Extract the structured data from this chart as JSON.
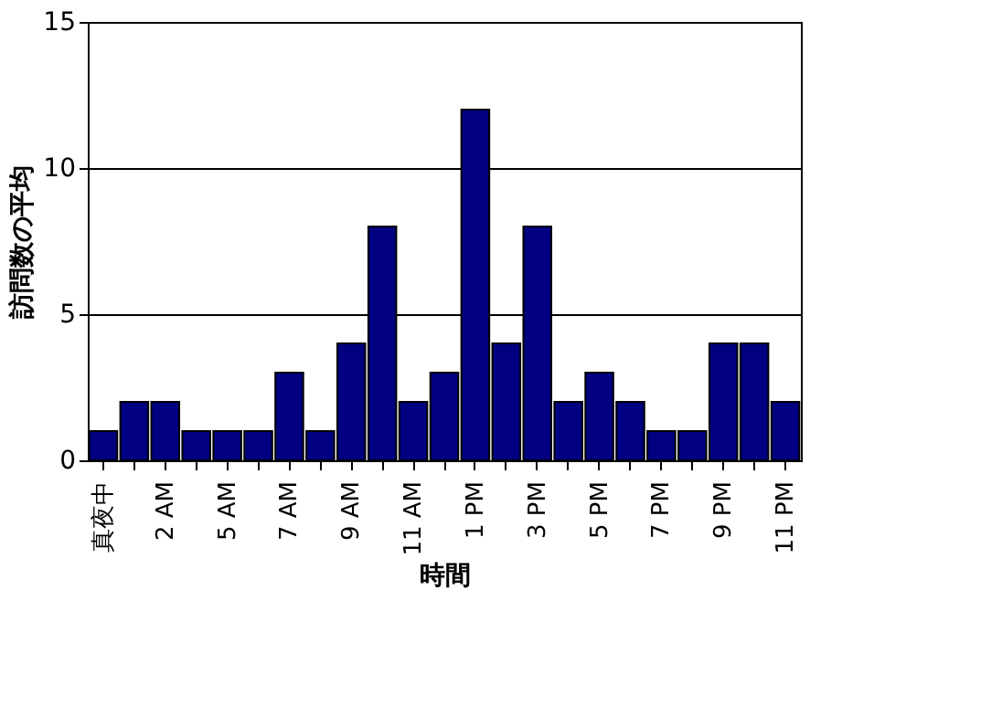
{
  "chart_data": {
    "type": "bar",
    "xlabel": "時間",
    "ylabel": "訪問数の平均",
    "categories": [
      "真夜中",
      null,
      "2 AM",
      null,
      "5 AM",
      null,
      "7 AM",
      null,
      "9 AM",
      null,
      "11 AM",
      null,
      "1 PM",
      null,
      "3 PM",
      null,
      "5 PM",
      null,
      "7 PM",
      null,
      "9 PM",
      null,
      "11 PM"
    ],
    "values": [
      1,
      2,
      2,
      1,
      1,
      1,
      3,
      1,
      4,
      8,
      2,
      3,
      12,
      4,
      8,
      2,
      3,
      2,
      1,
      1,
      4,
      4,
      2
    ],
    "color": "#000080",
    "ylim": [
      0,
      15
    ],
    "yticks": [
      0,
      5,
      10,
      15
    ],
    "grid": "y"
  }
}
